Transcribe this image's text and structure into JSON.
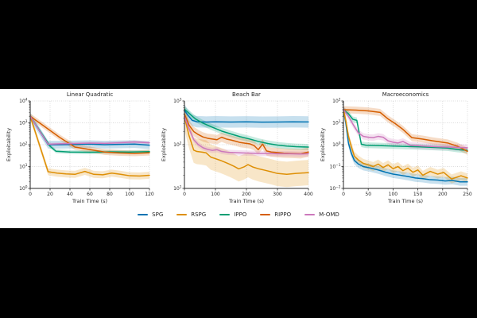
{
  "figure": {
    "page_background": "#000000",
    "figure_background": "#ffffff",
    "text_color": "#262626"
  },
  "legend": {
    "position": "bottom-center",
    "entries": [
      {
        "label": "SPG",
        "color": "#0173b2"
      },
      {
        "label": "RSPG",
        "color": "#de8f05"
      },
      {
        "label": "IPPO",
        "color": "#029e73"
      },
      {
        "label": "RIPPO",
        "color": "#d55e00"
      },
      {
        "label": "M-OMD",
        "color": "#cc78bc"
      }
    ]
  },
  "chart_data": [
    {
      "type": "line",
      "title": "Linear Quadratic",
      "xlabel": "Train Time (s)",
      "ylabel": "Exploitability",
      "grid": true,
      "x_axis": {
        "lim": [
          0,
          120
        ],
        "ticks": [
          0,
          20,
          40,
          60,
          80,
          100,
          120
        ]
      },
      "y_axis": {
        "scale": "log",
        "exp_range": [
          0,
          4
        ]
      },
      "series": [
        {
          "name": "SPG",
          "color": "#0173b2",
          "band_factor": 1.5,
          "x": [
            0,
            18,
            30,
            45,
            60,
            75,
            90,
            105,
            120
          ],
          "y": [
            2000,
            100,
            100,
            102,
            106,
            100,
            103,
            106,
            95
          ]
        },
        {
          "name": "RSPG",
          "color": "#de8f05",
          "band_factor": 1.45,
          "x": [
            0,
            18,
            27,
            36,
            45,
            55,
            64,
            73,
            82,
            91,
            100,
            110,
            120
          ],
          "y": [
            2000,
            5.8,
            5.0,
            4.6,
            4.4,
            6.0,
            4.4,
            4.2,
            5.0,
            4.4,
            3.8,
            3.7,
            4.0
          ]
        },
        {
          "name": "IPPO",
          "color": "#029e73",
          "band_factor": 1.22,
          "x": [
            0,
            20,
            26,
            40,
            60,
            80,
            100,
            120
          ],
          "y": [
            2000,
            85,
            50,
            46,
            45,
            47,
            46,
            48
          ]
        },
        {
          "name": "RIPPO",
          "color": "#d55e00",
          "band_factor": 1.35,
          "x": [
            0,
            15,
            30,
            45,
            60,
            75,
            90,
            105,
            120
          ],
          "y": [
            2000,
            650,
            210,
            78,
            60,
            46,
            42,
            40,
            43
          ]
        },
        {
          "name": "M-OMD",
          "color": "#cc78bc",
          "band_factor": 1.18,
          "x": [
            0,
            18,
            30,
            45,
            60,
            75,
            90,
            105,
            120
          ],
          "y": [
            2000,
            105,
            110,
            113,
            118,
            115,
            122,
            132,
            122
          ]
        }
      ]
    },
    {
      "type": "line",
      "title": "Beach Bar",
      "xlabel": "Train Time (s)",
      "ylabel": "Exploitability",
      "grid": true,
      "x_axis": {
        "lim": [
          0,
          400
        ],
        "ticks": [
          0,
          100,
          200,
          300,
          400
        ]
      },
      "y_axis": {
        "scale": "log",
        "exp_range": [
          1,
          3
        ]
      },
      "series": [
        {
          "name": "SPG",
          "color": "#0173b2",
          "band_factor": 1.35,
          "x": [
            0,
            10,
            25,
            40,
            70,
            100,
            150,
            200,
            250,
            300,
            350,
            400
          ],
          "y": [
            620,
            480,
            360,
            335,
            330,
            334,
            330,
            333,
            328,
            330,
            334,
            331
          ]
        },
        {
          "name": "RSPG",
          "color": "#de8f05",
          "band_factor": 1.95,
          "x": [
            0,
            15,
            30,
            40,
            55,
            70,
            85,
            100,
            115,
            130,
            145,
            160,
            175,
            192,
            205,
            220,
            240,
            260,
            280,
            300,
            330,
            360,
            400
          ],
          "y": [
            430,
            160,
            75,
            70,
            68,
            65,
            52,
            48,
            44,
            40,
            36,
            32,
            28,
            31,
            35,
            31,
            28,
            26,
            24,
            22,
            21,
            22,
            23
          ]
        },
        {
          "name": "IPPO",
          "color": "#029e73",
          "band_factor": 1.18,
          "x": [
            0,
            15,
            35,
            60,
            90,
            120,
            150,
            180,
            210,
            240,
            270,
            300,
            330,
            360,
            400
          ],
          "y": [
            650,
            520,
            390,
            310,
            250,
            205,
            176,
            152,
            135,
            118,
            106,
            98,
            93,
            90,
            88
          ]
        },
        {
          "name": "RIPPO",
          "color": "#d55e00",
          "band_factor": 1.28,
          "x": [
            0,
            15,
            30,
            45,
            60,
            75,
            90,
            105,
            120,
            135,
            150,
            165,
            180,
            195,
            210,
            225,
            238,
            252,
            265,
            280,
            300,
            320,
            350,
            375,
            400
          ],
          "y": [
            500,
            280,
            200,
            170,
            150,
            140,
            135,
            130,
            148,
            135,
            128,
            120,
            112,
            108,
            105,
            95,
            77,
            103,
            72,
            68,
            66,
            64,
            63,
            62,
            68
          ]
        },
        {
          "name": "M-OMD",
          "color": "#cc78bc",
          "band_factor": 1.15,
          "x": [
            0,
            15,
            30,
            45,
            60,
            75,
            90,
            105,
            120,
            140,
            160,
            180,
            210,
            240,
            270,
            300,
            340,
            370,
            400
          ],
          "y": [
            440,
            230,
            130,
            100,
            85,
            78,
            74,
            77,
            70,
            67,
            66,
            65,
            64,
            63,
            63,
            62,
            62,
            61,
            62
          ]
        }
      ]
    },
    {
      "type": "line",
      "title": "Macroeconomics",
      "xlabel": "Train Time (s)",
      "ylabel": "Exploitability",
      "grid": true,
      "x_axis": {
        "lim": [
          0,
          250
        ],
        "ticks": [
          0,
          50,
          100,
          150,
          200,
          250
        ]
      },
      "y_axis": {
        "scale": "log",
        "exp_range": [
          -2,
          2
        ]
      },
      "series": [
        {
          "name": "SPG",
          "color": "#0173b2",
          "band_factor": 1.5,
          "x": [
            0,
            5,
            10,
            16,
            22,
            30,
            40,
            55,
            70,
            85,
            100,
            115,
            130,
            145,
            160,
            175,
            190,
            205,
            220,
            235,
            250
          ],
          "y": [
            40,
            9,
            1.2,
            0.4,
            0.19,
            0.13,
            0.1,
            0.085,
            0.07,
            0.055,
            0.045,
            0.04,
            0.035,
            0.03,
            0.028,
            0.025,
            0.024,
            0.022,
            0.023,
            0.02,
            0.02
          ]
        },
        {
          "name": "RSPG",
          "color": "#de8f05",
          "band_factor": 1.6,
          "x": [
            0,
            5,
            10,
            16,
            22,
            30,
            40,
            50,
            60,
            70,
            80,
            90,
            100,
            110,
            120,
            130,
            140,
            150,
            160,
            175,
            190,
            202,
            218,
            237,
            250
          ],
          "y": [
            40,
            12,
            2.5,
            0.8,
            0.3,
            0.2,
            0.14,
            0.12,
            0.1,
            0.13,
            0.09,
            0.12,
            0.08,
            0.1,
            0.065,
            0.085,
            0.055,
            0.07,
            0.04,
            0.06,
            0.045,
            0.054,
            0.027,
            0.038,
            0.03
          ]
        },
        {
          "name": "IPPO",
          "color": "#029e73",
          "band_factor": 1.35,
          "x": [
            0,
            10,
            19,
            27,
            36,
            45,
            60,
            90,
            120,
            150,
            180,
            210,
            230,
            250
          ],
          "y": [
            40,
            26,
            14.5,
            13,
            1.05,
            0.95,
            0.93,
            0.88,
            0.84,
            0.8,
            0.75,
            0.7,
            0.6,
            0.55
          ]
        },
        {
          "name": "RIPPO",
          "color": "#d55e00",
          "band_factor": 1.45,
          "x": [
            0,
            25,
            50,
            74,
            90,
            105,
            120,
            138,
            160,
            180,
            210,
            230,
            250
          ],
          "y": [
            40,
            38,
            35,
            30,
            15,
            9,
            5,
            2.1,
            1.8,
            1.5,
            1.2,
            0.85,
            0.5
          ]
        },
        {
          "name": "M-OMD",
          "color": "#cc78bc",
          "band_factor": 1.4,
          "x": [
            0,
            10,
            20,
            30,
            40,
            50,
            60,
            70,
            80,
            90,
            100,
            110,
            120,
            135,
            150,
            170,
            190,
            210,
            230,
            250
          ],
          "y": [
            40,
            20,
            8,
            3.5,
            2.4,
            2.2,
            2.1,
            2.4,
            2.2,
            1.5,
            1.3,
            1.2,
            1.4,
            0.95,
            0.9,
            0.85,
            0.8,
            0.78,
            0.75,
            0.72
          ]
        }
      ]
    }
  ]
}
